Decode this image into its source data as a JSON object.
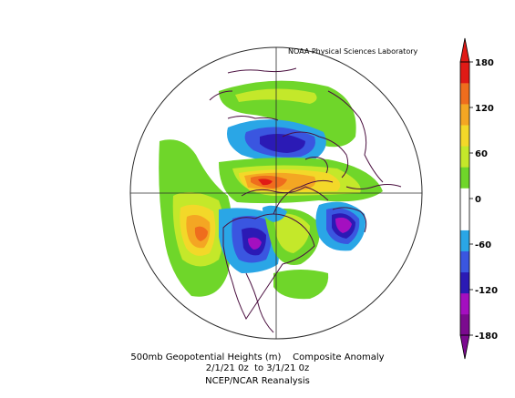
{
  "credit": "NOAA Physical Sciences Laboratory",
  "caption": {
    "line1": "500mb Geopotential Heights (m)    Composite Anomaly",
    "line2": "2/1/21 0z  to 3/1/21 0z",
    "line3": "NCEP/NCAR Reanalysis"
  },
  "colorbar": {
    "ticks": [
      "180",
      "120",
      "60",
      "0",
      "-60",
      "-120",
      "-180"
    ],
    "colors": [
      "#7b0a8f",
      "#a40fc0",
      "#2b1ab5",
      "#3a56e0",
      "#2aa6e6",
      "#ffffff",
      "#ffffff",
      "#6fd62a",
      "#c4e82a",
      "#f3d829",
      "#f4a623",
      "#ef6d1d",
      "#e01a16"
    ]
  },
  "colors": {
    "coast": "#4b1040",
    "frame": "#2b2b2b"
  }
}
